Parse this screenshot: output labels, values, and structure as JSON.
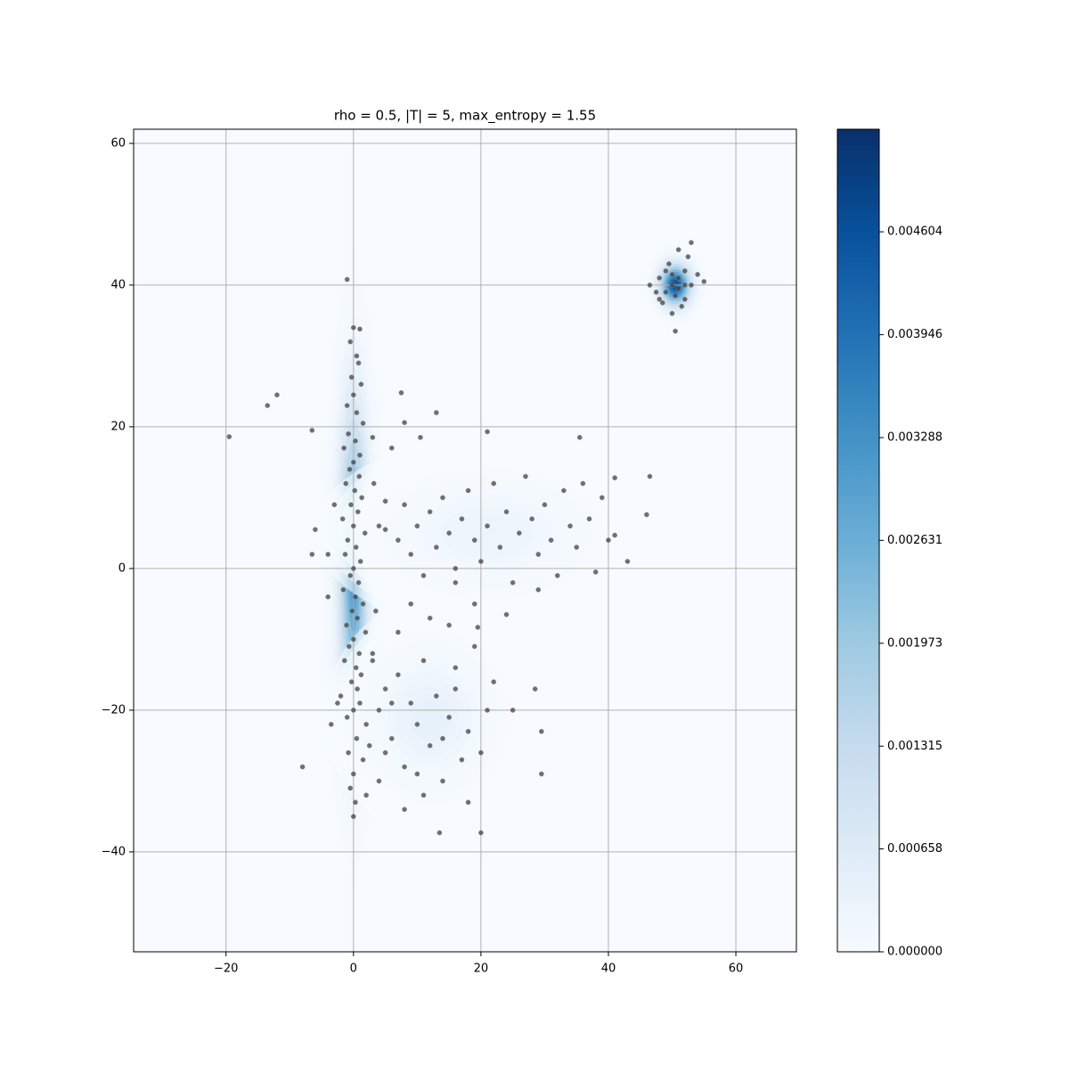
{
  "chart_data": {
    "type": "scatter",
    "title": "rho = 0.5, |T| = 5, max_entropy = 1.55",
    "xlim": [
      -34.5,
      69.5
    ],
    "ylim": [
      -54.1,
      62.0
    ],
    "xticks": [
      {
        "value": -20,
        "label": "−20"
      },
      0,
      20,
      40,
      60
    ],
    "yticks": [
      {
        "value": -40,
        "label": "−40"
      },
      {
        "value": -20,
        "label": "−20"
      },
      0,
      20,
      40,
      60
    ],
    "grid": true,
    "color": "#404040",
    "cmap": [
      "#f7fbff",
      "#deebf7",
      "#c6dbef",
      "#9ecae1",
      "#6baed6",
      "#4292c6",
      "#2171b5",
      "#08519c",
      "#08306b"
    ],
    "clim": [
      0,
      0.00526
    ],
    "cticks": [
      {
        "value": 0,
        "label": "0.000000"
      },
      0.000658,
      0.001315,
      0.001973,
      0.002631,
      0.003288,
      0.003946,
      0.004604
    ],
    "density": [
      {
        "x": 0,
        "y": 0,
        "sx": 1.6,
        "sy": 15,
        "peak": 0.0034
      },
      {
        "x": 50.5,
        "y": 40,
        "sx": 1.6,
        "sy": 1.9,
        "peak": 0.0052
      },
      {
        "x": 21,
        "y": 5,
        "sx": 9,
        "sy": 4.5,
        "peak": 0.00035
      },
      {
        "x": 12,
        "y": -21,
        "sx": 5.5,
        "sy": 5.5,
        "peak": 0.0005
      }
    ],
    "x": [
      0,
      1,
      -0.5,
      0.5,
      0.8,
      -0.3,
      1.2,
      0,
      -1,
      0.5,
      1.5,
      -0.8,
      0.3,
      -1.5,
      1,
      0,
      -0.6,
      0.9,
      -1.2,
      0.2,
      1.3,
      -0.4,
      0.7,
      -1.7,
      0,
      1.8,
      -0.9,
      0.4,
      -1.3,
      1.1,
      0,
      -0.5,
      0.8,
      -1.6,
      0.3,
      1.5,
      -0.2,
      0.6,
      -1.1,
      1.9,
      0,
      -0.7,
      0.9,
      -1.4,
      0.4,
      1.2,
      -0.3,
      0.6,
      -2,
      1,
      0,
      -1,
      2,
      0.5,
      -0.8,
      1.5,
      0,
      -0.5,
      0.3,
      0,
      -2.5,
      2.5,
      -3.5,
      3,
      -4,
      3.2,
      -3,
      4,
      -4,
      3.5,
      50,
      51,
      49,
      52,
      50.5,
      48,
      53,
      51.5,
      49.5,
      52.5,
      47.5,
      54,
      50,
      51,
      53,
      48.5,
      55,
      46.5,
      50.5,
      52,
      49,
      51,
      50,
      52,
      48,
      5,
      7,
      8,
      9,
      10,
      11,
      12,
      13,
      14,
      15,
      16,
      17,
      18,
      19,
      20,
      21,
      22,
      23,
      24,
      25,
      26,
      27,
      28,
      29,
      30,
      31,
      32,
      33,
      34,
      35,
      36,
      37,
      38,
      39,
      40,
      41,
      43,
      41,
      46,
      46.5,
      35.5,
      21,
      10.5,
      13,
      7.5,
      8,
      6,
      16,
      19,
      24,
      29,
      3,
      4,
      5,
      6,
      7,
      8,
      9,
      10,
      11,
      12,
      13,
      14,
      15,
      16,
      17,
      18,
      19,
      20,
      21,
      22,
      8,
      11,
      13.5,
      20,
      18,
      29.5,
      29.5,
      28.5,
      25,
      4,
      7,
      9,
      12,
      15,
      19.5,
      5,
      2,
      10,
      16,
      14,
      6,
      -19.5,
      -13.5,
      -12,
      -1,
      -8,
      -6.5,
      -6,
      -6.5,
      5,
      3
    ],
    "y": [
      34,
      33.8,
      32,
      30,
      29,
      27,
      26,
      24.5,
      23,
      22,
      20.5,
      19,
      18,
      17,
      16,
      15,
      14,
      13,
      12,
      11,
      10,
      9,
      8,
      7,
      6,
      5,
      4,
      3,
      2,
      1,
      0,
      -1,
      -2,
      -3,
      -4,
      -5,
      -6,
      -7,
      -8,
      -9,
      -10,
      -11,
      -12,
      -13,
      -14,
      -15,
      -16,
      -17,
      -18,
      -19,
      -20,
      -21,
      -22,
      -24,
      -26,
      -27,
      -29,
      -31,
      -33,
      -35,
      -19,
      -25,
      -22,
      -13,
      -4,
      12,
      9,
      6,
      2,
      -6,
      40,
      41,
      39,
      42,
      38.5,
      41,
      40,
      37,
      43,
      44,
      39,
      41.5,
      36,
      45,
      46,
      37.5,
      40.5,
      40,
      33.5,
      38,
      42,
      39.5,
      41.5,
      40,
      38,
      5.5,
      4,
      9,
      2,
      6,
      -1,
      8,
      3,
      10,
      5,
      0,
      7,
      11,
      4,
      1,
      6,
      12,
      3,
      8,
      -2,
      5,
      13,
      7,
      2,
      9,
      4,
      -1,
      11,
      6,
      3,
      12,
      7,
      -0.5,
      10,
      4,
      12.8,
      1,
      4.7,
      7.6,
      13,
      18.5,
      19.3,
      18.5,
      22,
      24.8,
      20.6,
      17,
      -2,
      -5,
      -6.5,
      -3,
      -12,
      -20,
      -17,
      -24,
      -15,
      -28,
      -19,
      -22,
      -13,
      -25,
      -18,
      -30,
      -21,
      -14,
      -27,
      -23,
      -11,
      -26,
      -20,
      -16,
      -34,
      -32,
      -37.3,
      -37.3,
      -33,
      -29,
      -23,
      -17,
      -20,
      -30,
      -9,
      -5,
      -7,
      -8,
      -8.3,
      -26,
      -32,
      -29,
      -17,
      -24,
      -19,
      18.6,
      23,
      24.5,
      40.8,
      -28,
      19.5,
      5.5,
      2,
      9.5,
      18.5
    ]
  }
}
